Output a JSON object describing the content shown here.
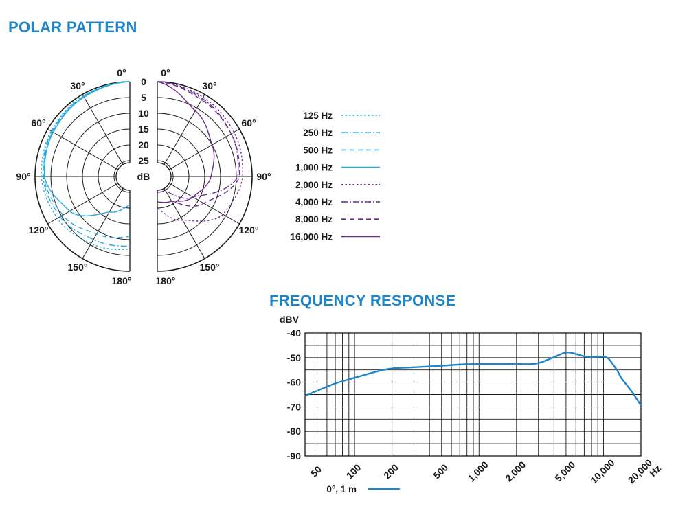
{
  "polar_title": "POLAR PATTERN",
  "freq_title": "FREQUENCY RESPONSE",
  "colors": {
    "heading": "#1e86c8",
    "low_band": "#2aa9df",
    "high_band": "#6a2c8e",
    "response": "#1e86c8",
    "grid": "#1a1a1a"
  },
  "chart_data": [
    {
      "type": "polar",
      "angle_labels_left": [
        "0°",
        "30°",
        "60°",
        "90°",
        "120°",
        "150°",
        "180°"
      ],
      "angle_labels_right": [
        "0°",
        "30°",
        "60°",
        "90°",
        "120°",
        "150°",
        "180°"
      ],
      "radial_labels": [
        "0",
        "5",
        "10",
        "15",
        "20",
        "25"
      ],
      "radial_unit": "dB",
      "angles_deg": [
        0,
        30,
        60,
        90,
        120,
        150,
        180
      ],
      "legend": [
        {
          "label": "125 Hz",
          "color": "#2aa9df",
          "dash": "dotted"
        },
        {
          "label": "250 Hz",
          "color": "#2aa9df",
          "dash": "dashdot"
        },
        {
          "label": "500 Hz",
          "color": "#2aa9df",
          "dash": "dashed"
        },
        {
          "label": "1,000 Hz",
          "color": "#2aa9df",
          "dash": "solid"
        },
        {
          "label": "2,000 Hz",
          "color": "#6a2c8e",
          "dash": "dotted"
        },
        {
          "label": "4,000 Hz",
          "color": "#6a2c8e",
          "dash": "dashdot"
        },
        {
          "label": "8,000 Hz",
          "color": "#6a2c8e",
          "dash": "dashed"
        },
        {
          "label": "16,000 Hz",
          "color": "#6a2c8e",
          "dash": "solid"
        }
      ],
      "series": [
        {
          "name": "125 Hz",
          "side": "left",
          "attenuation_db": [
            0,
            0.5,
            1.2,
            2,
            3.5,
            5.5,
            7
          ]
        },
        {
          "name": "250 Hz",
          "side": "left",
          "attenuation_db": [
            0,
            0.7,
            1.5,
            2.5,
            4.5,
            7,
            8
          ]
        },
        {
          "name": "500 Hz",
          "side": "left",
          "attenuation_db": [
            0,
            0.8,
            1.8,
            2.8,
            5.5,
            9,
            11
          ]
        },
        {
          "name": "1,000 Hz",
          "side": "left",
          "attenuation_db": [
            0,
            1,
            2,
            3,
            8,
            17,
            21
          ]
        },
        {
          "name": "2,000 Hz",
          "side": "right",
          "attenuation_db": [
            0,
            1,
            2,
            3,
            6,
            14,
            20
          ]
        },
        {
          "name": "4,000 Hz",
          "side": "right",
          "attenuation_db": [
            0,
            1.5,
            3,
            4.5,
            17,
            25,
            25
          ]
        },
        {
          "name": "8,000 Hz",
          "side": "right",
          "attenuation_db": [
            0,
            2,
            3,
            4,
            13,
            21,
            22
          ]
        },
        {
          "name": "16,000 Hz",
          "side": "right",
          "attenuation_db": [
            0,
            6,
            10,
            13,
            17,
            21,
            22
          ]
        }
      ]
    },
    {
      "type": "line",
      "ylabel": "dBV",
      "xlabel": "Hz",
      "ylim": [
        -90,
        -40
      ],
      "xlim": [
        40,
        20000
      ],
      "x_scale": "log",
      "yticks": [
        -40,
        -50,
        -60,
        -70,
        -80,
        -90
      ],
      "ytick_labels": [
        "-40",
        "-50",
        "-60",
        "-70",
        "-80",
        "-90"
      ],
      "xticks": [
        50,
        100,
        200,
        500,
        1000,
        2000,
        5000,
        10000,
        20000
      ],
      "xtick_labels": [
        "50",
        "100",
        "200",
        "500",
        "1,000",
        "2,000",
        "5,000",
        "10,000",
        "20,000"
      ],
      "legend": [
        {
          "label": "0°, 1 m",
          "color": "#1e86c8"
        }
      ],
      "series": [
        {
          "name": "0°, 1 m",
          "x": [
            40,
            50,
            70,
            100,
            150,
            200,
            300,
            500,
            700,
            1000,
            1500,
            2000,
            2700,
            3200,
            4000,
            5000,
            6000,
            7000,
            8000,
            10000,
            11000,
            12000,
            13000,
            14000,
            17000,
            20000
          ],
          "y": [
            -65.5,
            -63.5,
            -60.5,
            -58.2,
            -55.7,
            -54.4,
            -53.9,
            -53.3,
            -52.8,
            -52.6,
            -52.5,
            -52.6,
            -52.6,
            -51.8,
            -49.8,
            -47.9,
            -48.5,
            -49.5,
            -49.8,
            -49.6,
            -50.5,
            -53,
            -55.5,
            -58.5,
            -64,
            -69.5
          ]
        }
      ]
    }
  ]
}
